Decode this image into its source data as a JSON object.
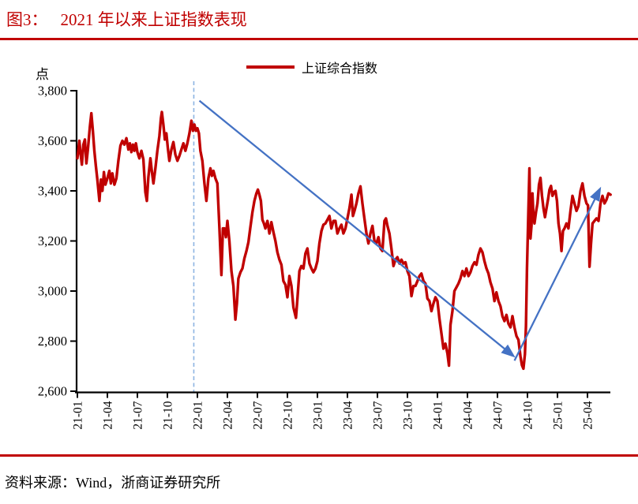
{
  "figure": {
    "label": "图3：",
    "title": "2021 年以来上证指数表现"
  },
  "source": {
    "text": "资料来源：Wind，浙商证券研究所"
  },
  "colors": {
    "accent_red": "#C00000",
    "arrow_blue": "#4472C4",
    "dashed_blue": "#8DB4E2",
    "axis_black": "#000000"
  },
  "chart_data": {
    "type": "line",
    "title": "2021 年以来上证指数表现",
    "unit_label": "点",
    "legend": [
      "上证综合指数"
    ],
    "legend_position": "top-center",
    "grid": false,
    "ylim": [
      2600,
      3800
    ],
    "y_ticks": [
      3800,
      3600,
      3400,
      3200,
      3000,
      2800,
      2600
    ],
    "y_tick_labels": [
      "3,800",
      "3,600",
      "3,400",
      "3,200",
      "3,000",
      "2,800",
      "2,600"
    ],
    "x_tick_labels": [
      "21-01",
      "21-04",
      "21-07",
      "21-10",
      "22-01",
      "22-04",
      "22-07",
      "22-10",
      "23-01",
      "23-04",
      "23-07",
      "23-10",
      "24-01",
      "24-04",
      "24-07",
      "24-10",
      "25-01",
      "25-04"
    ],
    "x_months_per_tick": 3,
    "series": [
      {
        "name": "上证综合指数",
        "color": "#C00000",
        "points": [
          [
            0,
            3530
          ],
          [
            0.2,
            3600
          ],
          [
            0.3,
            3555
          ],
          [
            0.45,
            3505
          ],
          [
            0.6,
            3585
          ],
          [
            0.75,
            3605
          ],
          [
            0.9,
            3510
          ],
          [
            1.05,
            3565
          ],
          [
            1.25,
            3655
          ],
          [
            1.4,
            3710
          ],
          [
            1.55,
            3640
          ],
          [
            1.7,
            3560
          ],
          [
            1.85,
            3500
          ],
          [
            2,
            3445
          ],
          [
            2.2,
            3360
          ],
          [
            2.35,
            3445
          ],
          [
            2.5,
            3400
          ],
          [
            2.65,
            3475
          ],
          [
            2.8,
            3425
          ],
          [
            3,
            3450
          ],
          [
            3.2,
            3480
          ],
          [
            3.35,
            3430
          ],
          [
            3.5,
            3470
          ],
          [
            3.7,
            3425
          ],
          [
            3.9,
            3450
          ],
          [
            4.1,
            3520
          ],
          [
            4.3,
            3580
          ],
          [
            4.5,
            3600
          ],
          [
            4.7,
            3585
          ],
          [
            4.9,
            3610
          ],
          [
            5.1,
            3565
          ],
          [
            5.25,
            3590
          ],
          [
            5.4,
            3555
          ],
          [
            5.55,
            3585
          ],
          [
            5.7,
            3560
          ],
          [
            5.85,
            3590
          ],
          [
            6,
            3555
          ],
          [
            6.2,
            3530
          ],
          [
            6.4,
            3560
          ],
          [
            6.6,
            3525
          ],
          [
            6.8,
            3395
          ],
          [
            6.95,
            3360
          ],
          [
            7.1,
            3455
          ],
          [
            7.3,
            3530
          ],
          [
            7.45,
            3475
          ],
          [
            7.6,
            3430
          ],
          [
            7.8,
            3490
          ],
          [
            8,
            3560
          ],
          [
            8.2,
            3620
          ],
          [
            8.35,
            3690
          ],
          [
            8.45,
            3715
          ],
          [
            8.6,
            3665
          ],
          [
            8.75,
            3605
          ],
          [
            8.9,
            3630
          ],
          [
            9.05,
            3570
          ],
          [
            9.2,
            3520
          ],
          [
            9.4,
            3565
          ],
          [
            9.6,
            3595
          ],
          [
            9.8,
            3545
          ],
          [
            10,
            3520
          ],
          [
            10.2,
            3540
          ],
          [
            10.4,
            3565
          ],
          [
            10.6,
            3590
          ],
          [
            10.8,
            3560
          ],
          [
            11,
            3590
          ],
          [
            11.2,
            3630
          ],
          [
            11.4,
            3680
          ],
          [
            11.55,
            3640
          ],
          [
            11.7,
            3665
          ],
          [
            11.85,
            3640
          ],
          [
            12,
            3650
          ],
          [
            12.15,
            3630
          ],
          [
            12.3,
            3560
          ],
          [
            12.5,
            3520
          ],
          [
            12.7,
            3430
          ],
          [
            12.9,
            3360
          ],
          [
            13.1,
            3450
          ],
          [
            13.3,
            3490
          ],
          [
            13.45,
            3460
          ],
          [
            13.6,
            3480
          ],
          [
            13.8,
            3450
          ],
          [
            14,
            3430
          ],
          [
            14.2,
            3250
          ],
          [
            14.4,
            3064
          ],
          [
            14.55,
            3250
          ],
          [
            14.7,
            3250
          ],
          [
            14.85,
            3215
          ],
          [
            15,
            3280
          ],
          [
            15.2,
            3200
          ],
          [
            15.4,
            3080
          ],
          [
            15.6,
            3020
          ],
          [
            15.8,
            2886
          ],
          [
            15.95,
            2950
          ],
          [
            16.1,
            3050
          ],
          [
            16.3,
            3075
          ],
          [
            16.5,
            3090
          ],
          [
            16.7,
            3130
          ],
          [
            16.9,
            3160
          ],
          [
            17.1,
            3195
          ],
          [
            17.3,
            3255
          ],
          [
            17.5,
            3315
          ],
          [
            17.7,
            3360
          ],
          [
            17.9,
            3390
          ],
          [
            18.05,
            3405
          ],
          [
            18.2,
            3385
          ],
          [
            18.35,
            3360
          ],
          [
            18.5,
            3285
          ],
          [
            18.65,
            3270
          ],
          [
            18.8,
            3250
          ],
          [
            19,
            3280
          ],
          [
            19.2,
            3230
          ],
          [
            19.4,
            3275
          ],
          [
            19.6,
            3235
          ],
          [
            19.8,
            3200
          ],
          [
            20,
            3155
          ],
          [
            20.2,
            3125
          ],
          [
            20.4,
            3105
          ],
          [
            20.6,
            3040
          ],
          [
            20.8,
            3025
          ],
          [
            21,
            2975
          ],
          [
            21.2,
            3060
          ],
          [
            21.4,
            3020
          ],
          [
            21.6,
            2935
          ],
          [
            21.85,
            2893
          ],
          [
            22,
            2970
          ],
          [
            22.2,
            3080
          ],
          [
            22.4,
            3100
          ],
          [
            22.6,
            3090
          ],
          [
            22.8,
            3150
          ],
          [
            23,
            3170
          ],
          [
            23.2,
            3110
          ],
          [
            23.4,
            3090
          ],
          [
            23.6,
            3075
          ],
          [
            23.8,
            3090
          ],
          [
            24,
            3120
          ],
          [
            24.2,
            3190
          ],
          [
            24.4,
            3240
          ],
          [
            24.6,
            3265
          ],
          [
            24.8,
            3270
          ],
          [
            25,
            3285
          ],
          [
            25.2,
            3300
          ],
          [
            25.4,
            3250
          ],
          [
            25.6,
            3280
          ],
          [
            25.8,
            3280
          ],
          [
            26,
            3230
          ],
          [
            26.2,
            3250
          ],
          [
            26.4,
            3265
          ],
          [
            26.6,
            3230
          ],
          [
            26.8,
            3250
          ],
          [
            27,
            3290
          ],
          [
            27.2,
            3330
          ],
          [
            27.4,
            3385
          ],
          [
            27.55,
            3300
          ],
          [
            27.7,
            3320
          ],
          [
            27.9,
            3350
          ],
          [
            28.1,
            3390
          ],
          [
            28.3,
            3418
          ],
          [
            28.5,
            3350
          ],
          [
            28.7,
            3290
          ],
          [
            28.9,
            3230
          ],
          [
            29.1,
            3190
          ],
          [
            29.3,
            3230
          ],
          [
            29.5,
            3260
          ],
          [
            29.7,
            3200
          ],
          [
            29.9,
            3190
          ],
          [
            30.1,
            3215
          ],
          [
            30.3,
            3170
          ],
          [
            30.5,
            3160
          ],
          [
            30.7,
            3280
          ],
          [
            30.85,
            3290
          ],
          [
            31,
            3260
          ],
          [
            31.2,
            3230
          ],
          [
            31.4,
            3170
          ],
          [
            31.6,
            3100
          ],
          [
            31.8,
            3125
          ],
          [
            32,
            3135
          ],
          [
            32.2,
            3110
          ],
          [
            32.4,
            3125
          ],
          [
            32.6,
            3110
          ],
          [
            32.8,
            3115
          ],
          [
            33,
            3080
          ],
          [
            33.2,
            3060
          ],
          [
            33.4,
            2980
          ],
          [
            33.6,
            3020
          ],
          [
            33.8,
            3020
          ],
          [
            34,
            3040
          ],
          [
            34.2,
            3060
          ],
          [
            34.4,
            3070
          ],
          [
            34.6,
            3040
          ],
          [
            34.8,
            3030
          ],
          [
            35,
            2970
          ],
          [
            35.2,
            2960
          ],
          [
            35.4,
            2920
          ],
          [
            35.6,
            2950
          ],
          [
            35.8,
            2975
          ],
          [
            36,
            2960
          ],
          [
            36.2,
            2890
          ],
          [
            36.4,
            2830
          ],
          [
            36.6,
            2770
          ],
          [
            36.8,
            2790
          ],
          [
            37,
            2750
          ],
          [
            37.15,
            2702
          ],
          [
            37.3,
            2865
          ],
          [
            37.5,
            2920
          ],
          [
            37.7,
            3000
          ],
          [
            37.9,
            3015
          ],
          [
            38.1,
            3030
          ],
          [
            38.3,
            3050
          ],
          [
            38.5,
            3080
          ],
          [
            38.7,
            3060
          ],
          [
            38.9,
            3090
          ],
          [
            39.1,
            3060
          ],
          [
            39.3,
            3075
          ],
          [
            39.5,
            3100
          ],
          [
            39.7,
            3115
          ],
          [
            39.9,
            3105
          ],
          [
            40.1,
            3145
          ],
          [
            40.3,
            3170
          ],
          [
            40.5,
            3155
          ],
          [
            40.7,
            3120
          ],
          [
            40.9,
            3090
          ],
          [
            41.1,
            3070
          ],
          [
            41.3,
            3035
          ],
          [
            41.5,
            3010
          ],
          [
            41.7,
            2960
          ],
          [
            41.9,
            2995
          ],
          [
            42.1,
            2960
          ],
          [
            42.3,
            2940
          ],
          [
            42.5,
            2900
          ],
          [
            42.7,
            2880
          ],
          [
            42.9,
            2905
          ],
          [
            43.1,
            2870
          ],
          [
            43.3,
            2855
          ],
          [
            43.5,
            2900
          ],
          [
            43.7,
            2855
          ],
          [
            43.9,
            2820
          ],
          [
            44.1,
            2805
          ],
          [
            44.3,
            2740
          ],
          [
            44.45,
            2704
          ],
          [
            44.6,
            2690
          ],
          [
            44.75,
            2748
          ],
          [
            44.85,
            2860
          ],
          [
            44.95,
            3090
          ],
          [
            45.1,
            3336
          ],
          [
            45.2,
            3490
          ],
          [
            45.3,
            3210
          ],
          [
            45.4,
            3260
          ],
          [
            45.5,
            3390
          ],
          [
            45.6,
            3300
          ],
          [
            45.7,
            3270
          ],
          [
            45.85,
            3315
          ],
          [
            46,
            3350
          ],
          [
            46.15,
            3425
          ],
          [
            46.3,
            3452
          ],
          [
            46.45,
            3380
          ],
          [
            46.6,
            3330
          ],
          [
            46.75,
            3295
          ],
          [
            46.9,
            3330
          ],
          [
            47.05,
            3365
          ],
          [
            47.2,
            3405
          ],
          [
            47.35,
            3420
          ],
          [
            47.5,
            3380
          ],
          [
            47.65,
            3395
          ],
          [
            47.8,
            3400
          ],
          [
            47.95,
            3360
          ],
          [
            48.1,
            3270
          ],
          [
            48.25,
            3230
          ],
          [
            48.4,
            3160
          ],
          [
            48.55,
            3240
          ],
          [
            48.7,
            3250
          ],
          [
            48.9,
            3270
          ],
          [
            49.1,
            3250
          ],
          [
            49.3,
            3320
          ],
          [
            49.5,
            3380
          ],
          [
            49.7,
            3350
          ],
          [
            49.9,
            3320
          ],
          [
            50.1,
            3340
          ],
          [
            50.3,
            3400
          ],
          [
            50.5,
            3430
          ],
          [
            50.7,
            3380
          ],
          [
            50.9,
            3350
          ],
          [
            51.05,
            3342
          ],
          [
            51.2,
            3097
          ],
          [
            51.35,
            3190
          ],
          [
            51.5,
            3270
          ],
          [
            51.7,
            3280
          ],
          [
            51.9,
            3290
          ],
          [
            52.1,
            3280
          ],
          [
            52.3,
            3350
          ],
          [
            52.5,
            3380
          ],
          [
            52.7,
            3350
          ],
          [
            52.9,
            3365
          ],
          [
            53.1,
            3390
          ],
          [
            53.3,
            3385
          ]
        ]
      }
    ],
    "annotations": {
      "dashed_vline": {
        "month": 11.64,
        "color": "#8DB4E2"
      },
      "arrows": [
        {
          "from_month": 12.2,
          "from_value": 3760,
          "to_month": 43.0,
          "to_value": 2760,
          "color": "#4472C4"
        },
        {
          "from_month": 43.7,
          "from_value": 2722,
          "to_month": 51.9,
          "to_value": 3380,
          "color": "#4472C4"
        }
      ]
    }
  }
}
